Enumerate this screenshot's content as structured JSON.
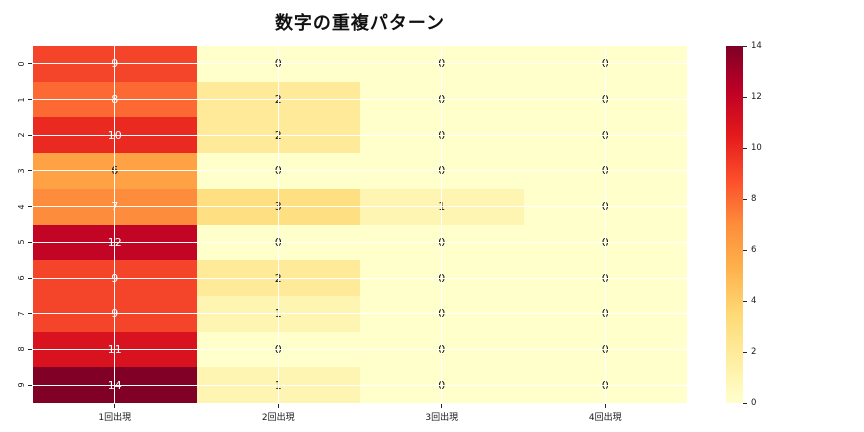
{
  "title": "数字の重複パターン",
  "chart_data": {
    "type": "heatmap",
    "title": "数字の重複パターン",
    "x_tick_labels": [
      "1回出現",
      "2回出現",
      "3回出現",
      "4回出現"
    ],
    "y_tick_labels": [
      "0",
      "1",
      "2",
      "3",
      "4",
      "5",
      "6",
      "7",
      "8",
      "9"
    ],
    "values": [
      [
        9,
        0,
        0,
        0
      ],
      [
        8,
        2,
        0,
        0
      ],
      [
        10,
        2,
        0,
        0
      ],
      [
        6,
        0,
        0,
        0
      ],
      [
        7,
        3,
        1,
        0
      ],
      [
        12,
        0,
        0,
        0
      ],
      [
        9,
        2,
        0,
        0
      ],
      [
        9,
        1,
        0,
        0
      ],
      [
        11,
        0,
        0,
        0
      ],
      [
        14,
        1,
        0,
        0
      ]
    ],
    "vmin": 0,
    "vmax": 14,
    "colormap": "YlOrRd",
    "colormap_stops_bottom_to_top": [
      "#ffffcc",
      "#ffeda0",
      "#fed976",
      "#feb24c",
      "#fd8d3c",
      "#fc4e2a",
      "#e31a1c",
      "#bd0026",
      "#800026"
    ],
    "colorbar_tick_labels": [
      0,
      2,
      4,
      6,
      8,
      10,
      12,
      14
    ],
    "cell_colors_by_value": {
      "0": "#ffffcc",
      "1": "#fff5b3",
      "2": "#ffea9a",
      "3": "#fedf82",
      "6": "#fea245",
      "7": "#fd8d3c",
      "8": "#fc6932",
      "9": "#f4452a",
      "10": "#ea2920",
      "11": "#d8131f",
      "12": "#c20425",
      "14": "#800026"
    },
    "annotation_white_text_min_value": 7,
    "annotation_color_dark": "#1a1a1a",
    "annotation_color_light": "#ffffff",
    "gridline_color": "#ffffff",
    "tick_color": "#262626",
    "grid": "white 1px lines crossing at every cell center",
    "legend_position": "colorbar-right"
  }
}
